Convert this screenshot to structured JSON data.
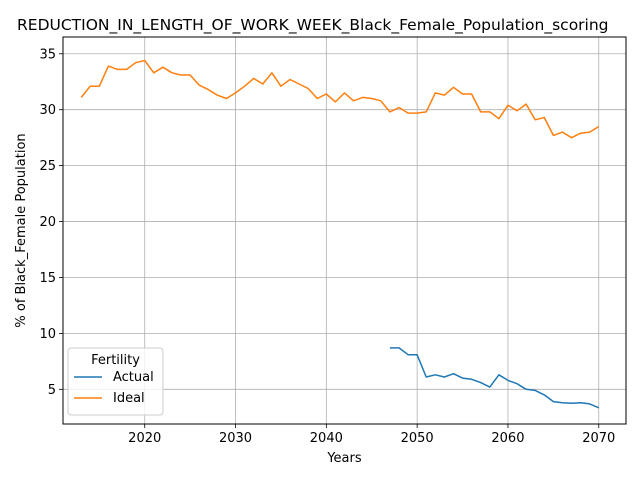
{
  "chart_data": {
    "type": "line",
    "title": "REDUCTION_IN_LENGTH_OF_WORK_WEEK_Black_Female_Population_scoring",
    "xlabel": "Years",
    "ylabel": "% of Black_Female Population",
    "xlim": [
      2011,
      2073
    ],
    "ylim": [
      1.9,
      36.5
    ],
    "xticks": [
      2020,
      2030,
      2040,
      2050,
      2060,
      2070
    ],
    "yticks": [
      5,
      10,
      15,
      20,
      25,
      30,
      35
    ],
    "grid": true,
    "legend": {
      "title": "Fertility",
      "placement": "lower-left",
      "entries": [
        "Actual",
        "Ideal"
      ]
    },
    "series": [
      {
        "name": "Actual",
        "color": "#1f77b4",
        "x": [
          2047,
          2048,
          2049,
          2050,
          2051,
          2052,
          2053,
          2054,
          2055,
          2056,
          2057,
          2058,
          2059,
          2060,
          2061,
          2062,
          2063,
          2064,
          2065,
          2066,
          2067,
          2068,
          2069,
          2070
        ],
        "y": [
          8.7,
          8.7,
          8.1,
          8.1,
          6.1,
          6.3,
          6.1,
          6.4,
          6.0,
          5.9,
          5.6,
          5.2,
          6.3,
          5.8,
          5.5,
          5.0,
          4.9,
          4.5,
          3.9,
          3.8,
          3.75,
          3.8,
          3.7,
          3.35
        ]
      },
      {
        "name": "Ideal",
        "color": "#ff7f0e",
        "x": [
          2013,
          2014,
          2015,
          2016,
          2017,
          2018,
          2019,
          2020,
          2021,
          2022,
          2023,
          2024,
          2025,
          2026,
          2027,
          2028,
          2029,
          2030,
          2031,
          2032,
          2033,
          2034,
          2035,
          2036,
          2037,
          2038,
          2039,
          2040,
          2041,
          2042,
          2043,
          2044,
          2045,
          2046,
          2047,
          2048,
          2049,
          2050,
          2051,
          2052,
          2053,
          2054,
          2055,
          2056,
          2057,
          2058,
          2059,
          2060,
          2061,
          2062,
          2063,
          2064,
          2065,
          2066,
          2067,
          2068,
          2069,
          2070
        ],
        "y": [
          31.1,
          32.1,
          32.1,
          33.9,
          33.6,
          33.6,
          34.2,
          34.4,
          33.3,
          33.8,
          33.3,
          33.1,
          33.1,
          32.2,
          31.8,
          31.3,
          31.0,
          31.5,
          32.1,
          32.8,
          32.3,
          33.3,
          32.1,
          32.7,
          32.3,
          31.9,
          31.0,
          31.4,
          30.7,
          31.5,
          30.8,
          31.1,
          31.0,
          30.8,
          29.8,
          30.2,
          29.7,
          29.7,
          29.8,
          31.5,
          31.3,
          32.0,
          31.4,
          31.4,
          29.8,
          29.8,
          29.2,
          30.4,
          29.9,
          30.5,
          29.1,
          29.3,
          27.7,
          28.0,
          27.5,
          27.9,
          28.0,
          28.5
        ]
      }
    ]
  }
}
